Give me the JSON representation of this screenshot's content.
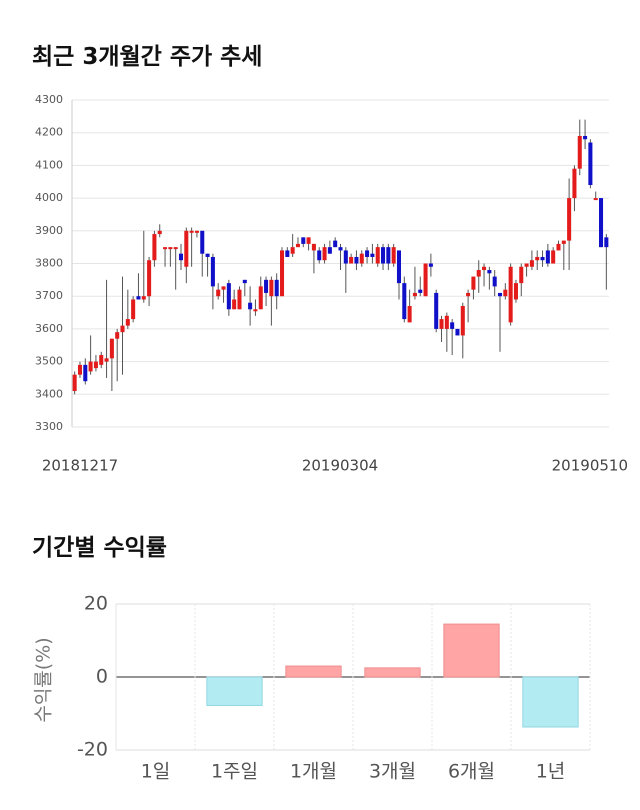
{
  "colors": {
    "up": "#e31b1b",
    "down": "#1010c8",
    "pos_bar": "#ffa5a5",
    "neg_bar": "#b2ebf2"
  },
  "chart_data": [
    {
      "type": "candlestick",
      "title": "최근 3개월간 주가 추세",
      "ylim": [
        3300,
        4300
      ],
      "yticks": [
        "4300",
        "4200",
        "4100",
        "4000",
        "3900",
        "3800",
        "3700",
        "3600",
        "3500",
        "3400",
        "3300"
      ],
      "xticks": [
        "20181217",
        "20190304",
        "20190510"
      ],
      "ohlc": [
        [
          3410,
          3460,
          3400,
          3470
        ],
        [
          3460,
          3490,
          3450,
          3500
        ],
        [
          3490,
          3440,
          3430,
          3510
        ],
        [
          3470,
          3500,
          3460,
          3580
        ],
        [
          3480,
          3500,
          3470,
          3520
        ],
        [
          3490,
          3520,
          3480,
          3530
        ],
        [
          3500,
          3510,
          3450,
          3750
        ],
        [
          3510,
          3570,
          3410,
          3570
        ],
        [
          3570,
          3590,
          3440,
          3600
        ],
        [
          3590,
          3610,
          3460,
          3760
        ],
        [
          3610,
          3630,
          3600,
          3720
        ],
        [
          3630,
          3690,
          3620,
          3700
        ],
        [
          3700,
          3690,
          3690,
          3770
        ],
        [
          3690,
          3700,
          3680,
          3900
        ],
        [
          3700,
          3810,
          3670,
          3820
        ],
        [
          3810,
          3890,
          3790,
          3900
        ],
        [
          3890,
          3900,
          3880,
          3920
        ],
        [
          3850,
          3850,
          3790,
          3850
        ],
        [
          3850,
          3850,
          3790,
          3850
        ],
        [
          3850,
          3850,
          3720,
          3850
        ],
        [
          3830,
          3810,
          3780,
          3860
        ],
        [
          3790,
          3900,
          3740,
          3910
        ],
        [
          3900,
          3900,
          3790,
          3910
        ],
        [
          3900,
          3900,
          3880,
          3900
        ],
        [
          3900,
          3830,
          3760,
          3900
        ],
        [
          3830,
          3820,
          3760,
          3830
        ],
        [
          3820,
          3730,
          3660,
          3830
        ],
        [
          3700,
          3720,
          3690,
          3740
        ],
        [
          3720,
          3730,
          3680,
          3730
        ],
        [
          3740,
          3660,
          3640,
          3750
        ],
        [
          3660,
          3690,
          3660,
          3720
        ],
        [
          3660,
          3720,
          3660,
          3730
        ],
        [
          3750,
          3740,
          3700,
          3750
        ],
        [
          3680,
          3660,
          3610,
          3730
        ],
        [
          3660,
          3660,
          3640,
          3690
        ],
        [
          3660,
          3730,
          3660,
          3760
        ],
        [
          3750,
          3710,
          3670,
          3760
        ],
        [
          3700,
          3750,
          3610,
          3760
        ],
        [
          3750,
          3700,
          3660,
          3770
        ],
        [
          3700,
          3840,
          3700,
          3850
        ],
        [
          3840,
          3820,
          3820,
          3850
        ],
        [
          3830,
          3850,
          3820,
          3890
        ],
        [
          3850,
          3860,
          3850,
          3880
        ],
        [
          3880,
          3860,
          3850,
          3880
        ],
        [
          3860,
          3880,
          3840,
          3880
        ],
        [
          3840,
          3860,
          3770,
          3860
        ],
        [
          3840,
          3810,
          3800,
          3850
        ],
        [
          3810,
          3850,
          3800,
          3860
        ],
        [
          3850,
          3830,
          3830,
          3870
        ],
        [
          3870,
          3850,
          3850,
          3880
        ],
        [
          3850,
          3840,
          3780,
          3860
        ],
        [
          3840,
          3800,
          3710,
          3850
        ],
        [
          3800,
          3820,
          3800,
          3830
        ],
        [
          3820,
          3800,
          3780,
          3840
        ],
        [
          3800,
          3830,
          3790,
          3840
        ],
        [
          3840,
          3820,
          3800,
          3850
        ],
        [
          3830,
          3820,
          3800,
          3860
        ],
        [
          3800,
          3850,
          3790,
          3860
        ],
        [
          3850,
          3800,
          3780,
          3860
        ],
        [
          3850,
          3800,
          3780,
          3860
        ],
        [
          3800,
          3850,
          3790,
          3860
        ],
        [
          3840,
          3740,
          3690,
          3840
        ],
        [
          3740,
          3630,
          3620,
          3760
        ],
        [
          3620,
          3670,
          3620,
          3720
        ],
        [
          3700,
          3710,
          3690,
          3790
        ],
        [
          3720,
          3710,
          3700,
          3760
        ],
        [
          3700,
          3800,
          3700,
          3800
        ],
        [
          3800,
          3790,
          3760,
          3830
        ],
        [
          3710,
          3600,
          3590,
          3720
        ],
        [
          3600,
          3630,
          3560,
          3640
        ],
        [
          3600,
          3640,
          3530,
          3650
        ],
        [
          3620,
          3600,
          3520,
          3630
        ],
        [
          3600,
          3580,
          3580,
          3600
        ],
        [
          3580,
          3670,
          3510,
          3680
        ],
        [
          3700,
          3710,
          3620,
          3720
        ],
        [
          3720,
          3760,
          3690,
          3760
        ],
        [
          3760,
          3780,
          3710,
          3810
        ],
        [
          3780,
          3790,
          3730,
          3800
        ],
        [
          3780,
          3770,
          3720,
          3790
        ],
        [
          3760,
          3730,
          3700,
          3780
        ],
        [
          3710,
          3700,
          3530,
          3710
        ],
        [
          3700,
          3720,
          3690,
          3740
        ],
        [
          3620,
          3790,
          3610,
          3800
        ],
        [
          3690,
          3740,
          3680,
          3750
        ],
        [
          3740,
          3790,
          3700,
          3800
        ],
        [
          3790,
          3800,
          3760,
          3800
        ],
        [
          3790,
          3810,
          3780,
          3840
        ],
        [
          3810,
          3820,
          3780,
          3840
        ],
        [
          3820,
          3810,
          3790,
          3840
        ],
        [
          3840,
          3800,
          3790,
          3860
        ],
        [
          3800,
          3840,
          3800,
          3850
        ],
        [
          3840,
          3860,
          3840,
          3870
        ],
        [
          3860,
          3870,
          3780,
          3870
        ],
        [
          3870,
          4000,
          3780,
          4060
        ],
        [
          4000,
          4090,
          3960,
          4100
        ],
        [
          4090,
          4190,
          4070,
          4240
        ],
        [
          4190,
          4180,
          4150,
          4240
        ],
        [
          4170,
          4040,
          4030,
          4180
        ],
        [
          4000,
          4000,
          4000,
          4020
        ],
        [
          4000,
          3850,
          3850,
          4000
        ],
        [
          3880,
          3850,
          3720,
          3890
        ]
      ]
    },
    {
      "type": "bar",
      "title": "기간별 수익률",
      "ylabel": "수익률(%)",
      "categories": [
        "1일",
        "1주일",
        "1개월",
        "3개월",
        "6개월",
        "1년"
      ],
      "values": [
        0,
        -7.8,
        3.0,
        2.5,
        14.5,
        -13.7
      ],
      "ylim": [
        -20,
        20
      ],
      "yticks": [
        "20",
        "0",
        "-20"
      ]
    }
  ]
}
